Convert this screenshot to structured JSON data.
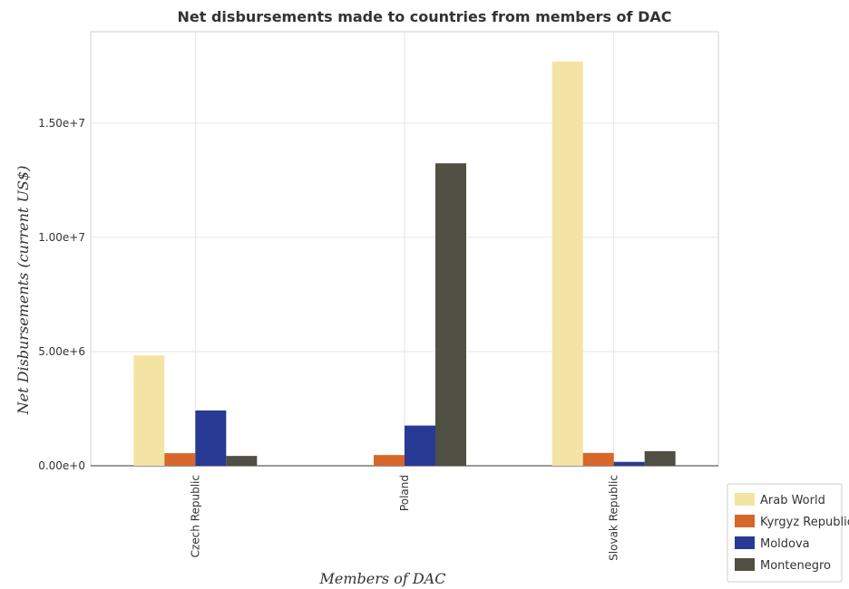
{
  "chart_data": {
    "type": "bar",
    "title": "Net disbursements made to countries from members of DAC",
    "xlabel": "Members of DAC",
    "ylabel": "Net Disbursements (current US$)",
    "categories": [
      "Czech Republic",
      "Poland",
      "Slovak Republic"
    ],
    "ylim": [
      0,
      19000000
    ],
    "yticks": [
      0,
      5000000,
      10000000,
      15000000
    ],
    "ytick_labels": [
      "0.00e+0",
      "5.00e+6",
      "1.00e+7",
      "1.50e+7"
    ],
    "grid": true,
    "legend_position": "bottom-right",
    "series": [
      {
        "name": "Arab World",
        "color": "#f4e4a4",
        "values": [
          4830000,
          0,
          17700000
        ]
      },
      {
        "name": "Kyrgyz Republic",
        "color": "#d7672a",
        "values": [
          550000,
          470000,
          560000
        ]
      },
      {
        "name": "Moldova",
        "color": "#283a94",
        "values": [
          2420000,
          1760000,
          170000
        ]
      },
      {
        "name": "Montenegro",
        "color": "#4f4f44",
        "values": [
          430000,
          13240000,
          640000
        ]
      }
    ]
  }
}
